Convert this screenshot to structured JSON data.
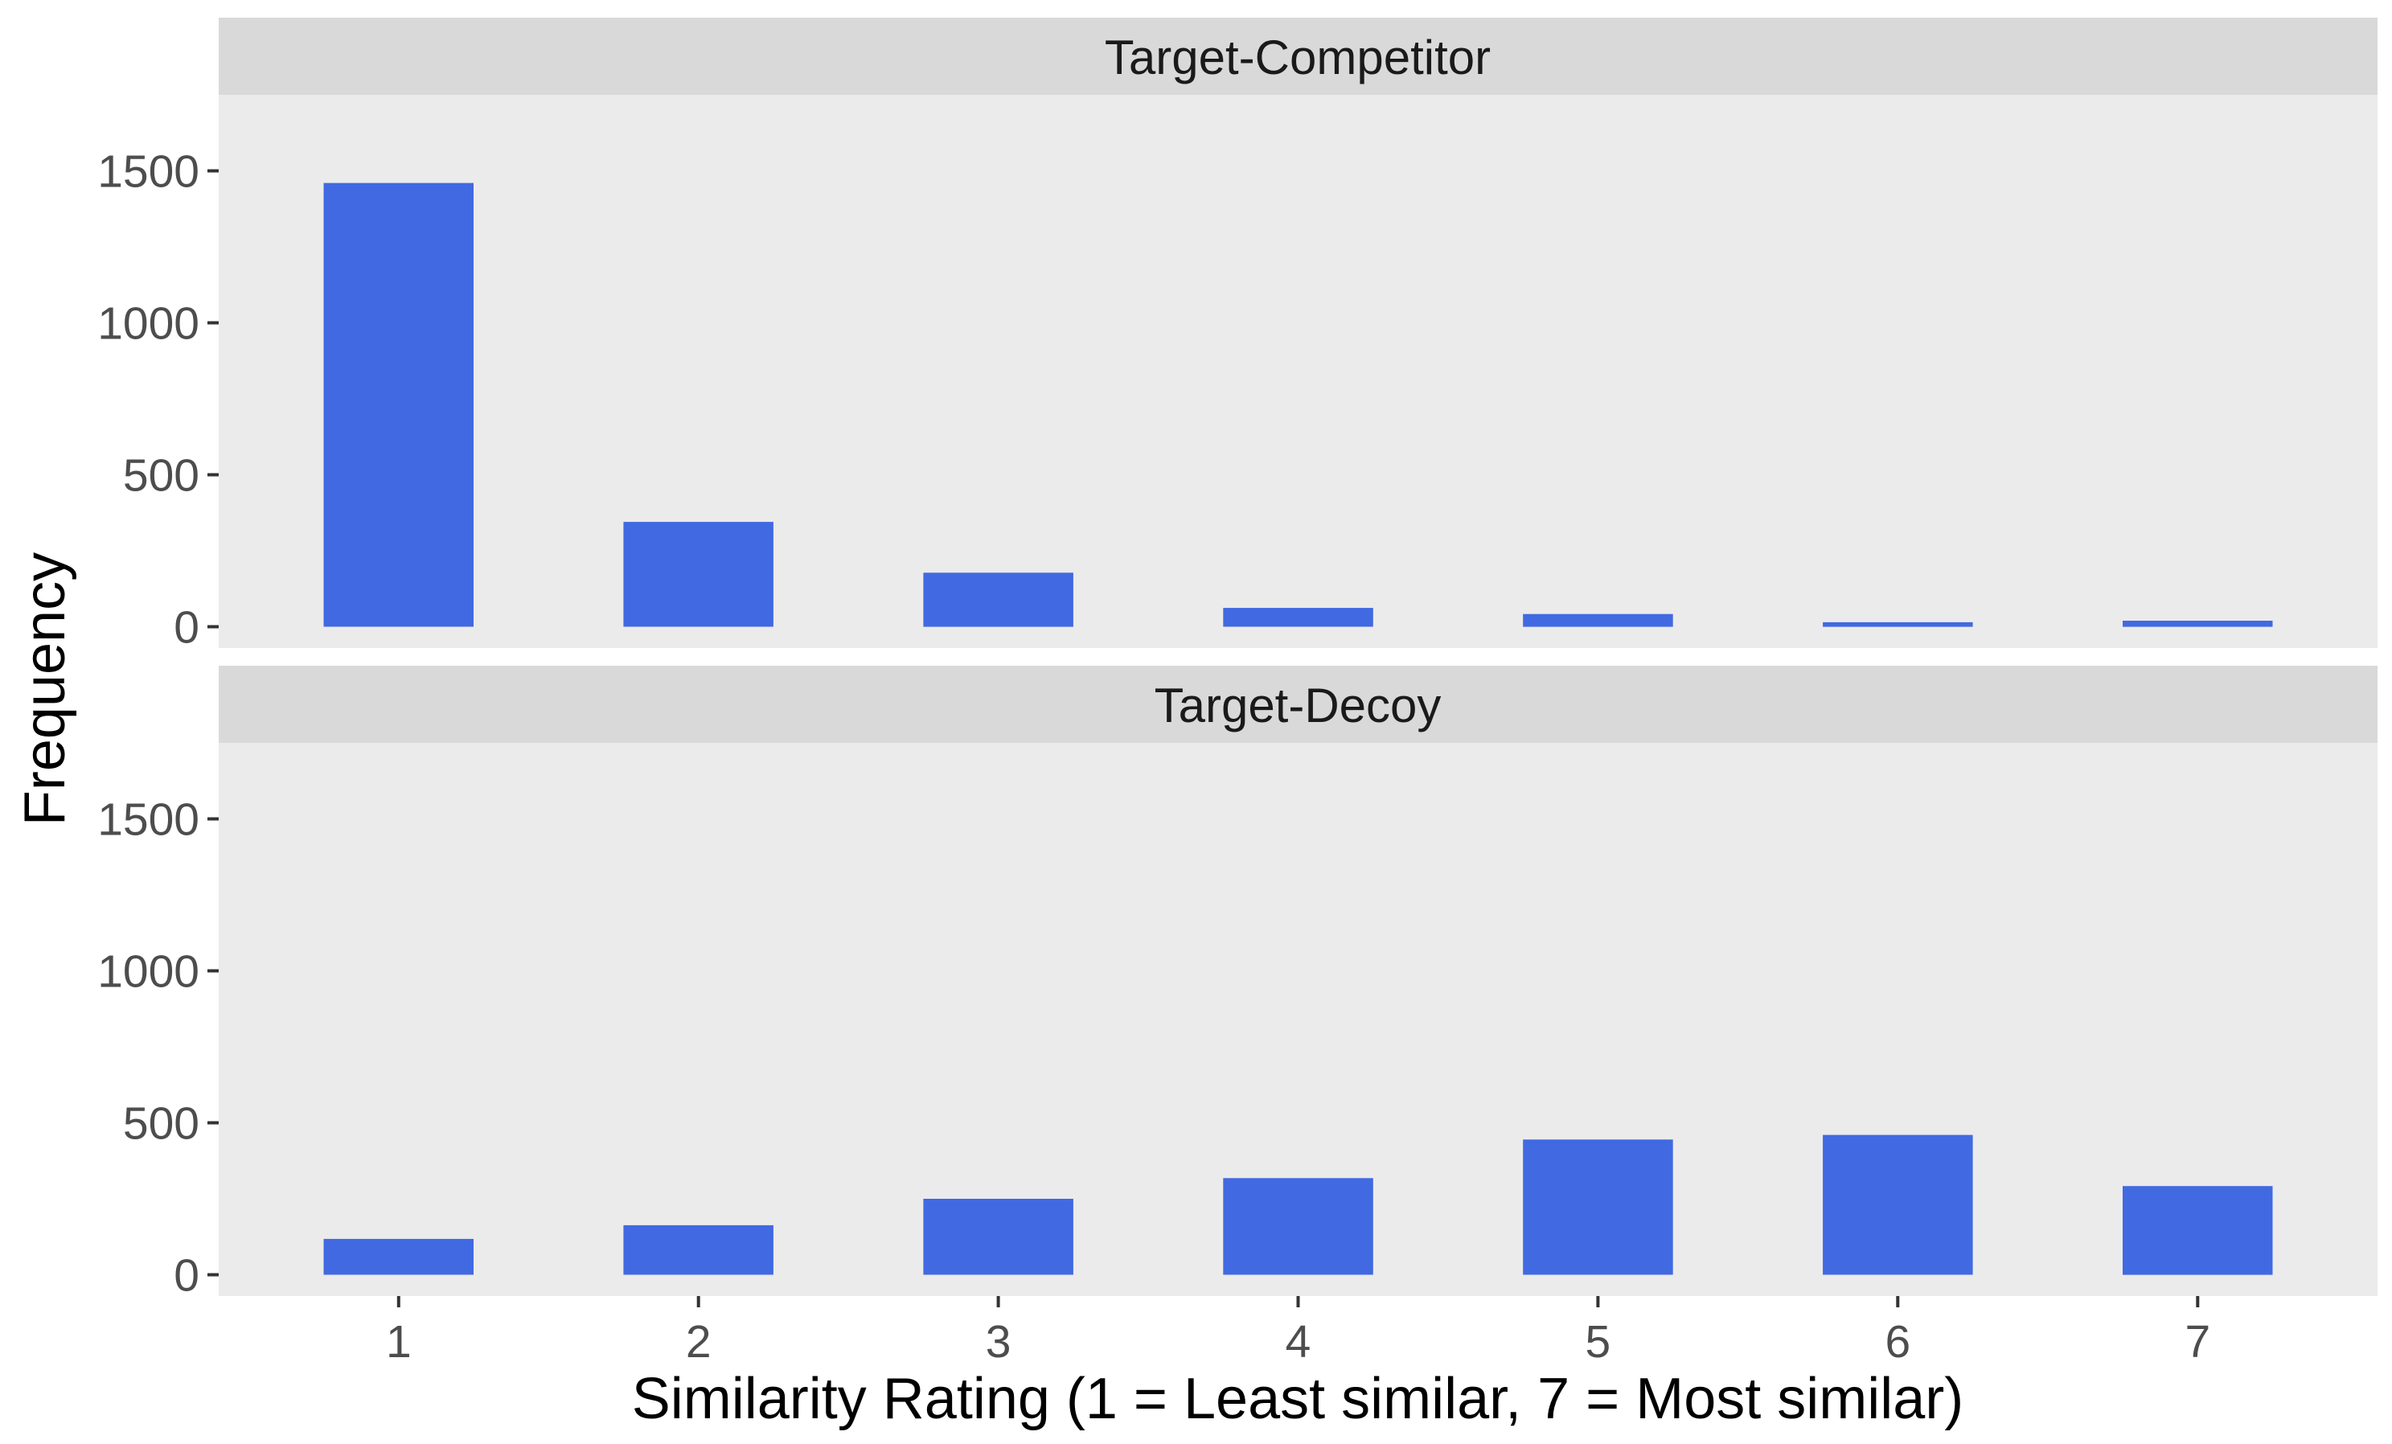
{
  "chart_data": {
    "type": "bar",
    "facet_layout": "stacked vertically, shared x axis",
    "xlabel": "Similarity Rating (1 = Least similar, 7 = Most similar)",
    "ylabel": "Frequency",
    "categories": [
      "1",
      "2",
      "3",
      "4",
      "5",
      "6",
      "7"
    ],
    "yticks": [
      0,
      500,
      1000,
      1500
    ],
    "ylim": [
      -70,
      1750
    ],
    "grid": false,
    "legend": "none",
    "bar_color": "#4169E1",
    "panel_background": "#EBEBEB",
    "strip_background": "#D9D9D9",
    "panels": [
      {
        "strip": "Target-Competitor",
        "values": [
          1460,
          345,
          178,
          62,
          42,
          15,
          20
        ]
      },
      {
        "strip": "Target-Decoy",
        "values": [
          118,
          163,
          250,
          318,
          445,
          460,
          292
        ]
      }
    ]
  }
}
